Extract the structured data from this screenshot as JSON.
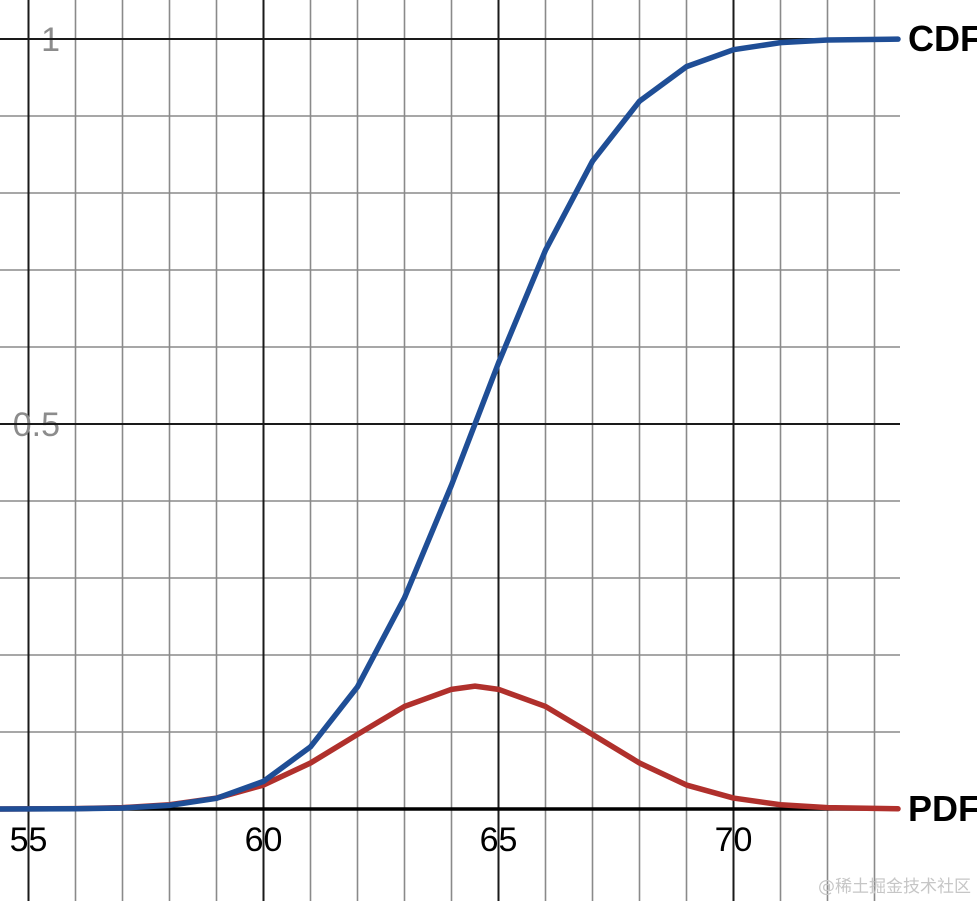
{
  "chart_data": {
    "type": "line",
    "title": "",
    "xlabel": "",
    "ylabel": "",
    "xlim": [
      54.4,
      73.5
    ],
    "ylim": [
      0,
      1
    ],
    "grid": true,
    "x_major_ticks": [
      55,
      60,
      65,
      70
    ],
    "x_tick_labels": [
      "55",
      "60",
      "65",
      "70"
    ],
    "y_major_ticks": [
      0.5,
      1
    ],
    "y_tick_labels": [
      "0.5",
      "1"
    ],
    "distribution": {
      "mean": 64.5,
      "std_dev": 2.5
    },
    "series": [
      {
        "name": "CDF",
        "color": "#1f4e96",
        "x": [
          54.4,
          56,
          57,
          58,
          59,
          60,
          61,
          62,
          63,
          64,
          64.5,
          65,
          66,
          67,
          68,
          69,
          70,
          71,
          72,
          73.5
        ],
        "y": [
          0.0,
          0.0003,
          0.0013,
          0.0047,
          0.0139,
          0.0359,
          0.0808,
          0.1587,
          0.2743,
          0.4207,
          0.5,
          0.5793,
          0.7257,
          0.8413,
          0.9192,
          0.9641,
          0.9861,
          0.9953,
          0.9987,
          0.9998
        ]
      },
      {
        "name": "PDF",
        "color": "#b0302c",
        "x": [
          54.4,
          56,
          57,
          58,
          59,
          60,
          61,
          62,
          63,
          64,
          64.5,
          65,
          66,
          67,
          68,
          69,
          70,
          71,
          72,
          73.5
        ],
        "y": [
          0.0,
          0.0005,
          0.0018,
          0.0055,
          0.0142,
          0.0311,
          0.0597,
          0.0968,
          0.1332,
          0.1554,
          0.1596,
          0.1554,
          0.1332,
          0.0968,
          0.0597,
          0.0311,
          0.0142,
          0.0055,
          0.0018,
          0.0003
        ]
      }
    ]
  },
  "watermark": "@稀土掘金技术社区"
}
